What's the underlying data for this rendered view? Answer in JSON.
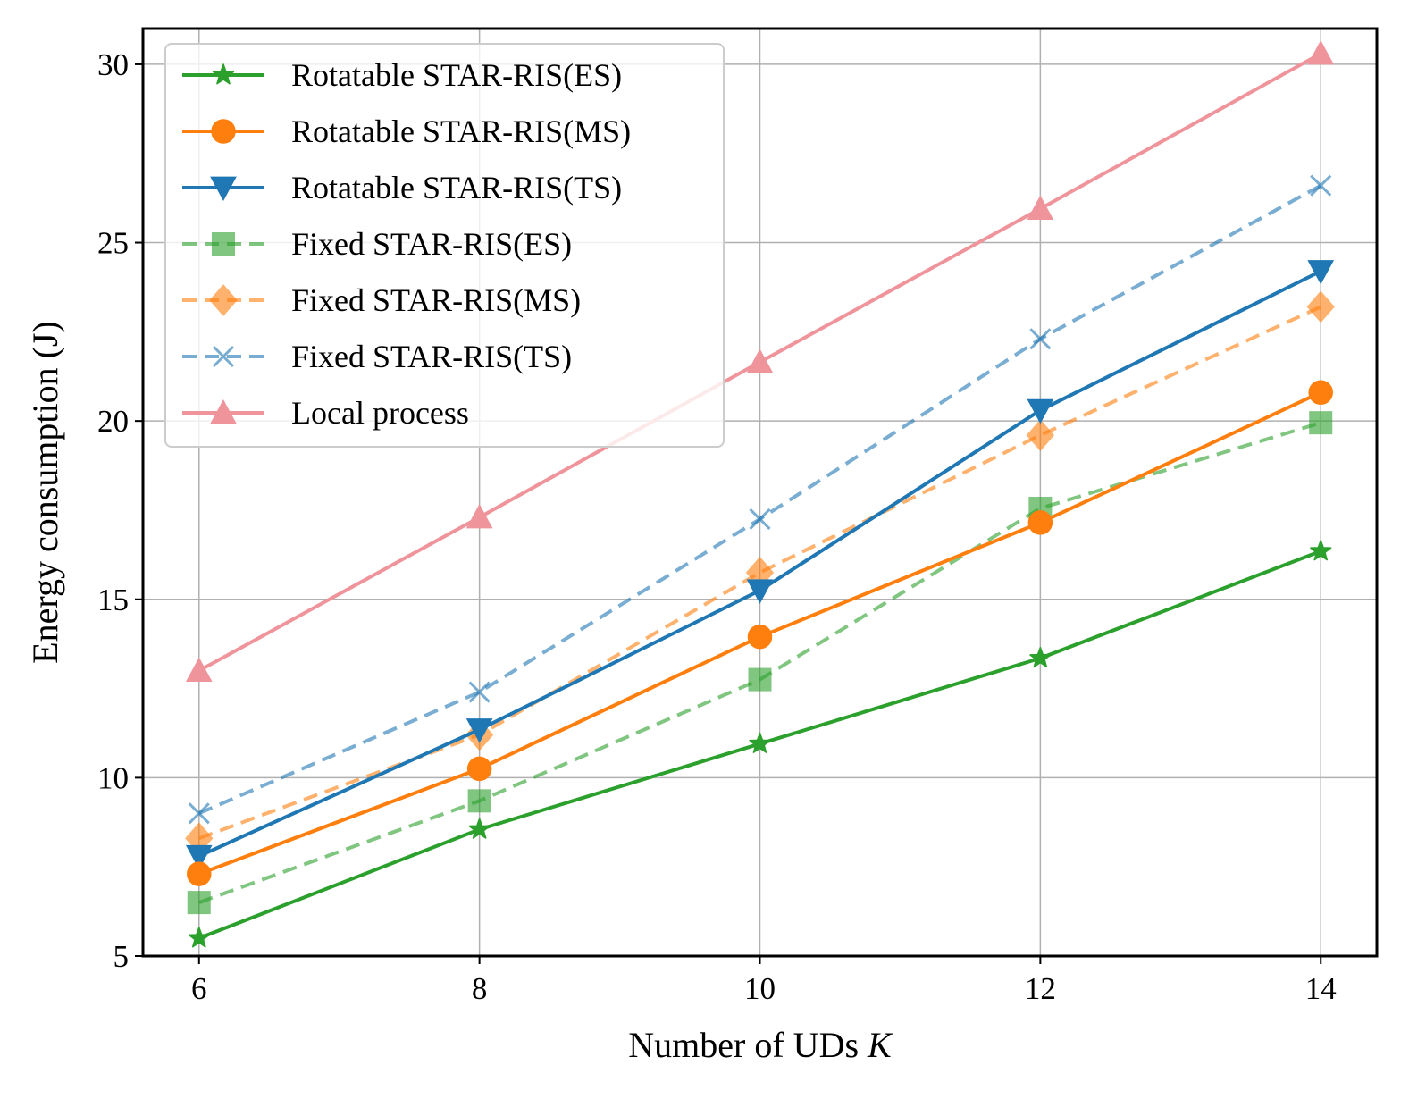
{
  "chart_data": {
    "type": "line",
    "xlabel_prefix": "Number of UDs ",
    "xlabel_var": "K",
    "ylabel": "Energy consumption (J)",
    "x": [
      6,
      8,
      10,
      12,
      14
    ],
    "xlim": [
      5.6,
      14.4
    ],
    "ylim": [
      5,
      31
    ],
    "xticks": [
      6,
      8,
      10,
      12,
      14
    ],
    "yticks": [
      5,
      10,
      15,
      20,
      25,
      30
    ],
    "grid": true,
    "legend_position": "upper-left",
    "series": [
      {
        "name": "Rotatable STAR-RIS(ES)",
        "values": [
          5.5,
          8.55,
          10.95,
          13.35,
          16.35
        ],
        "color": "#2ca02c",
        "marker": "star",
        "dashed": false,
        "alpha": 1.0
      },
      {
        "name": "Rotatable STAR-RIS(MS)",
        "values": [
          7.3,
          10.25,
          13.95,
          17.15,
          20.8
        ],
        "color": "#ff7f0e",
        "marker": "circle",
        "dashed": false,
        "alpha": 1.0
      },
      {
        "name": "Rotatable STAR-RIS(TS)",
        "values": [
          7.8,
          11.35,
          15.25,
          20.3,
          24.2
        ],
        "color": "#1f77b4",
        "marker": "triangle-down",
        "dashed": false,
        "alpha": 1.0
      },
      {
        "name": "Fixed STAR-RIS(ES)",
        "values": [
          6.5,
          9.35,
          12.75,
          17.55,
          19.95
        ],
        "color": "#2ca02c",
        "marker": "square",
        "dashed": true,
        "alpha": 0.6
      },
      {
        "name": "Fixed STAR-RIS(MS)",
        "values": [
          8.3,
          11.2,
          15.75,
          19.6,
          23.2
        ],
        "color": "#ff7f0e",
        "marker": "diamond",
        "dashed": true,
        "alpha": 0.6
      },
      {
        "name": "Fixed STAR-RIS(TS)",
        "values": [
          9.0,
          12.4,
          17.25,
          22.3,
          26.6
        ],
        "color": "#1f77b4",
        "marker": "x",
        "dashed": true,
        "alpha": 0.6
      },
      {
        "name": "Local process",
        "values": [
          13.0,
          17.3,
          21.65,
          25.95,
          30.3
        ],
        "color": "#f0949c",
        "marker": "triangle-up",
        "dashed": false,
        "alpha": 1.0
      }
    ]
  }
}
